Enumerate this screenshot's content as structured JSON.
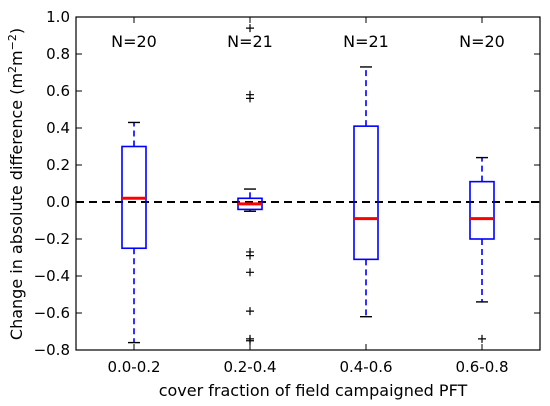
{
  "chart_data": {
    "type": "boxplot",
    "title": "",
    "xlabel": "cover fraction of field campaigned PFT",
    "ylabel": "Change in absolute difference (m²m⁻²)",
    "ylabel_parts": {
      "main": "Change in absolute difference (m",
      "sup1": "2",
      "mid": "m",
      "sup2": "−2",
      "end": ")"
    },
    "ylim": [
      -0.8,
      1.0
    ],
    "yticks": [
      -0.8,
      -0.6,
      -0.4,
      -0.2,
      0.0,
      0.2,
      0.4,
      0.6,
      0.8,
      1.0
    ],
    "ytick_labels": [
      "−0.8",
      "−0.6",
      "−0.4",
      "−0.2",
      "0.0",
      "0.2",
      "0.4",
      "0.6",
      "0.8",
      "1.0"
    ],
    "reference_line": {
      "y": 0.0,
      "style": "dashed",
      "color": "#000000"
    },
    "box_color": "#0000ff",
    "median_color": "#ff0000",
    "categories": [
      "0.0-0.2",
      "0.2-0.4",
      "0.4-0.6",
      "0.6-0.8"
    ],
    "n_labels": [
      "N=20",
      "N=21",
      "N=21",
      "N=20"
    ],
    "boxes": [
      {
        "category": "0.0-0.2",
        "whisker_low": -0.76,
        "q1": -0.25,
        "median": 0.02,
        "q3": 0.3,
        "whisker_high": 0.43,
        "fliers": []
      },
      {
        "category": "0.2-0.4",
        "whisker_low": -0.05,
        "q1": -0.04,
        "median": -0.01,
        "q3": 0.02,
        "whisker_high": 0.07,
        "fliers": [
          0.94,
          0.58,
          0.56,
          -0.27,
          -0.29,
          -0.38,
          -0.59,
          -0.74,
          -0.75
        ]
      },
      {
        "category": "0.4-0.6",
        "whisker_low": -0.62,
        "q1": -0.31,
        "median": -0.09,
        "q3": 0.41,
        "whisker_high": 0.73,
        "fliers": []
      },
      {
        "category": "0.6-0.8",
        "whisker_low": -0.54,
        "q1": -0.2,
        "median": -0.09,
        "q3": 0.11,
        "whisker_high": 0.24,
        "fliers": [
          -0.74
        ]
      }
    ]
  }
}
